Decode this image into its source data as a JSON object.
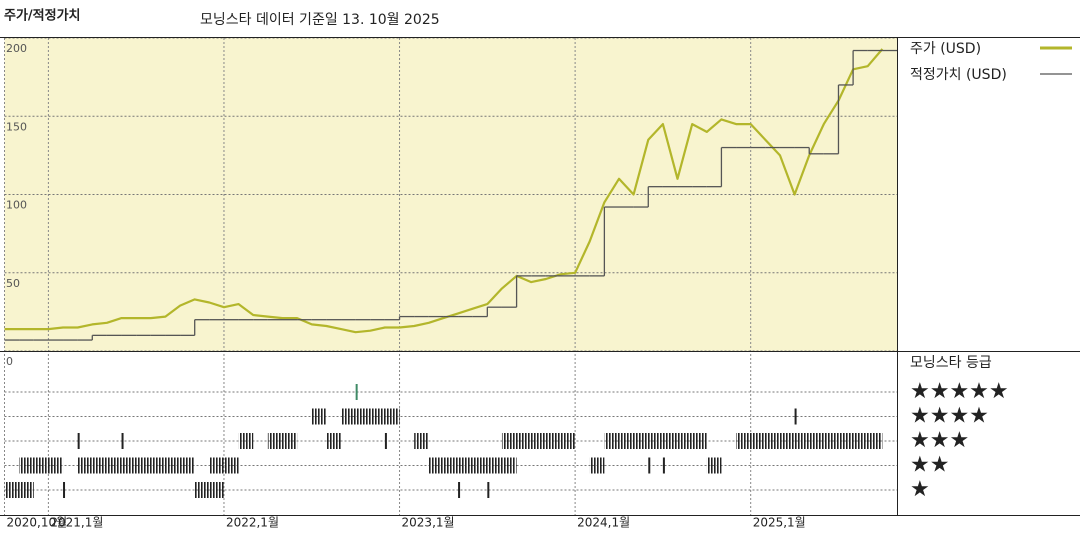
{
  "chart_data": [
    {
      "type": "line",
      "title": "주가/적정가치",
      "subtitle": "모닝스타 데이터 기준일 13. 10월 2025",
      "x": [
        "2020-10",
        "2020-11",
        "2020-12",
        "2021-01",
        "2021-02",
        "2021-03",
        "2021-04",
        "2021-05",
        "2021-06",
        "2021-07",
        "2021-08",
        "2021-09",
        "2021-10",
        "2021-11",
        "2021-12",
        "2022-01",
        "2022-02",
        "2022-03",
        "2022-04",
        "2022-05",
        "2022-06",
        "2022-07",
        "2022-08",
        "2022-09",
        "2022-10",
        "2022-11",
        "2022-12",
        "2023-01",
        "2023-02",
        "2023-03",
        "2023-04",
        "2023-05",
        "2023-06",
        "2023-07",
        "2023-08",
        "2023-09",
        "2023-10",
        "2023-11",
        "2023-12",
        "2024-01",
        "2024-02",
        "2024-03",
        "2024-04",
        "2024-05",
        "2024-06",
        "2024-07",
        "2024-08",
        "2024-09",
        "2024-10",
        "2024-11",
        "2024-12",
        "2025-01",
        "2025-02",
        "2025-03",
        "2025-04",
        "2025-05",
        "2025-06",
        "2025-07",
        "2025-08",
        "2025-09",
        "2025-10"
      ],
      "series": [
        {
          "name": "주가 (USD)",
          "color": "#b3b62b",
          "values": [
            14,
            14,
            14,
            14,
            15,
            15,
            17,
            18,
            21,
            21,
            21,
            22,
            29,
            33,
            31,
            28,
            30,
            23,
            22,
            21,
            21,
            17,
            16,
            14,
            12,
            13,
            15,
            15,
            16,
            18,
            21,
            24,
            27,
            30,
            40,
            48,
            44,
            46,
            49,
            50,
            70,
            95,
            110,
            100,
            135,
            145,
            110,
            145,
            140,
            148,
            145,
            145,
            135,
            125,
            100,
            125,
            145,
            160,
            180,
            182,
            193
          ]
        },
        {
          "name": "적정가치 (USD)",
          "color": "#555555",
          "drawstyle": "steps-post",
          "values": [
            7,
            7,
            7,
            7,
            7,
            7,
            10,
            10,
            10,
            10,
            10,
            10,
            10,
            20,
            20,
            20,
            20,
            20,
            20,
            20,
            20,
            20,
            20,
            20,
            20,
            20,
            20,
            22,
            22,
            22,
            22,
            22,
            22,
            28,
            28,
            48,
            48,
            48,
            48,
            48,
            48,
            92,
            92,
            92,
            105,
            105,
            105,
            105,
            105,
            130,
            130,
            130,
            130,
            130,
            130,
            126,
            126,
            170,
            192,
            192,
            192
          ]
        }
      ],
      "xlim": [
        "2020-10",
        "2025-11"
      ],
      "xticks": [
        {
          "value": "2020-10",
          "label": "2020,10월"
        },
        {
          "value": "2021-01",
          "label": "2021,1월"
        },
        {
          "value": "2022-01",
          "label": "2022,1월"
        },
        {
          "value": "2023-01",
          "label": "2023,1월"
        },
        {
          "value": "2024-01",
          "label": "2024,1월"
        },
        {
          "value": "2025-01",
          "label": "2025,1월"
        }
      ],
      "ylim": [
        0,
        200
      ],
      "yticks": [
        0,
        50,
        100,
        150,
        200
      ],
      "grid": true,
      "background": "#f8f4cf"
    },
    {
      "type": "rating",
      "title": "모닝스타 등급",
      "ratings": [
        {
          "stars": 5,
          "label": "★★★★★",
          "color": "#3f8a66"
        },
        {
          "stars": 4,
          "label": "★★★★",
          "color": "#222222"
        },
        {
          "stars": 3,
          "label": "★★★",
          "color": "#222222"
        },
        {
          "stars": 2,
          "label": "★★",
          "color": "#222222"
        },
        {
          "stars": 1,
          "label": "★",
          "color": "#222222"
        }
      ],
      "periods": [
        {
          "stars": 1,
          "start": "2020-10",
          "end": "2020-12"
        },
        {
          "stars": 1,
          "start": "2021-02",
          "end": "2021-02"
        },
        {
          "stars": 1,
          "start": "2021-11",
          "end": "2022-01"
        },
        {
          "stars": 1,
          "start": "2023-05",
          "end": "2023-05"
        },
        {
          "stars": 1,
          "start": "2023-07",
          "end": "2023-07"
        },
        {
          "stars": 2,
          "start": "2020-11",
          "end": "2021-02"
        },
        {
          "stars": 2,
          "start": "2021-03",
          "end": "2021-11"
        },
        {
          "stars": 2,
          "start": "2021-12",
          "end": "2022-02"
        },
        {
          "stars": 2,
          "start": "2023-03",
          "end": "2023-09"
        },
        {
          "stars": 2,
          "start": "2024-02",
          "end": "2024-03"
        },
        {
          "stars": 2,
          "start": "2024-06",
          "end": "2024-06"
        },
        {
          "stars": 2,
          "start": "2024-07",
          "end": "2024-07"
        },
        {
          "stars": 2,
          "start": "2024-10",
          "end": "2024-11"
        },
        {
          "stars": 3,
          "start": "2021-03",
          "end": "2021-03"
        },
        {
          "stars": 3,
          "start": "2021-06",
          "end": "2021-06"
        },
        {
          "stars": 3,
          "start": "2022-02",
          "end": "2022-03"
        },
        {
          "stars": 3,
          "start": "2022-04",
          "end": "2022-06"
        },
        {
          "stars": 3,
          "start": "2022-08",
          "end": "2022-09"
        },
        {
          "stars": 3,
          "start": "2022-12",
          "end": "2022-12"
        },
        {
          "stars": 3,
          "start": "2023-02",
          "end": "2023-03"
        },
        {
          "stars": 3,
          "start": "2023-08",
          "end": "2024-01"
        },
        {
          "stars": 3,
          "start": "2024-03",
          "end": "2024-10"
        },
        {
          "stars": 3,
          "start": "2024-12",
          "end": "2025-10"
        },
        {
          "stars": 4,
          "start": "2022-07",
          "end": "2022-08"
        },
        {
          "stars": 4,
          "start": "2022-09",
          "end": "2023-01"
        },
        {
          "stars": 4,
          "start": "2025-04",
          "end": "2025-04"
        },
        {
          "stars": 5,
          "start": "2022-10",
          "end": "2022-10"
        }
      ]
    }
  ]
}
